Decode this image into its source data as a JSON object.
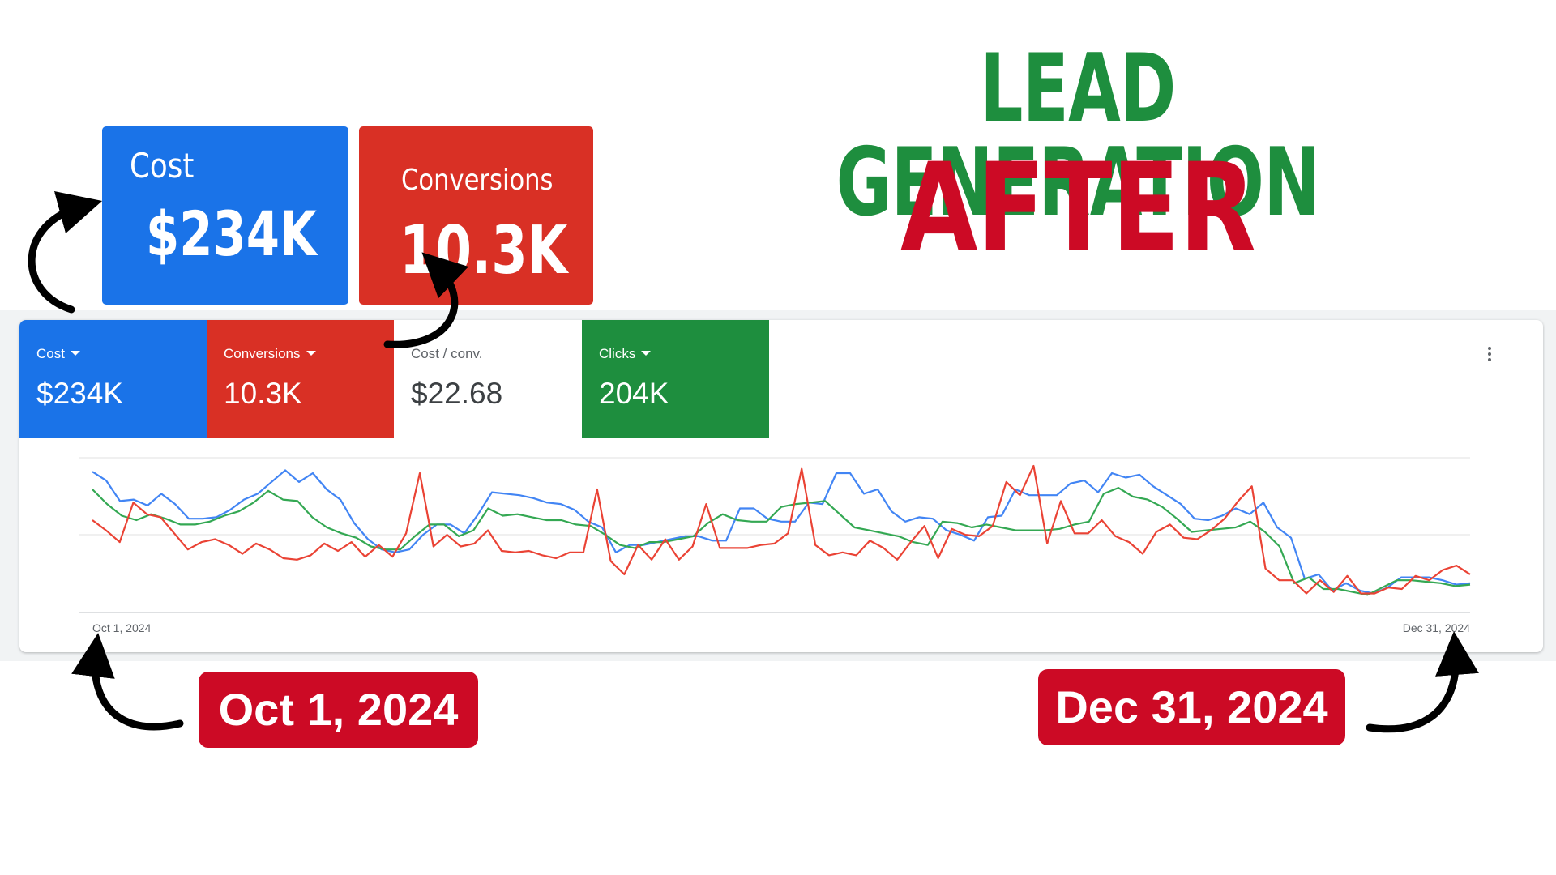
{
  "headline": {
    "line1": "LEAD GENERATION",
    "line2": "AFTER",
    "line1_color": "#1e8e3e",
    "line2_color": "#cc0a25"
  },
  "callouts": {
    "cost": {
      "label": "Cost",
      "value": "$234K"
    },
    "conversions": {
      "label": "Conversions",
      "value": "10.3K"
    }
  },
  "kpis": {
    "cost": {
      "label": "Cost",
      "value": "$234K",
      "color": "#1a73e8"
    },
    "conversions": {
      "label": "Conversions",
      "value": "10.3K",
      "color": "#d93025"
    },
    "cost_per_conv": {
      "label": "Cost / conv.",
      "value": "$22.68"
    },
    "clicks": {
      "label": "Clicks",
      "value": "204K",
      "color": "#1e8e3e"
    }
  },
  "date_pills": {
    "start": "Oct 1, 2024",
    "end": "Dec 31, 2024"
  },
  "chart_data": {
    "type": "line",
    "title": "",
    "xlabel": "",
    "ylabel": "",
    "x_ticks": [
      "Oct 1, 2024",
      "Dec 31, 2024"
    ],
    "x_start": "2024-10-01",
    "x_end": "2024-12-31",
    "grid": true,
    "series": [
      {
        "color": "#4285f4",
        "values": [
          0.96,
          0.9,
          0.76,
          0.77,
          0.73,
          0.81,
          0.74,
          0.64,
          0.64,
          0.65,
          0.7,
          0.77,
          0.81,
          0.89,
          0.97,
          0.89,
          0.95,
          0.84,
          0.77,
          0.61,
          0.5,
          0.43,
          0.41,
          0.43,
          0.53,
          0.6,
          0.6,
          0.54,
          0.67,
          0.82,
          0.81,
          0.8,
          0.78,
          0.75,
          0.74,
          0.7,
          0.62,
          0.58,
          0.41,
          0.46,
          0.46,
          0.48,
          0.5,
          0.52,
          0.52,
          0.49,
          0.49,
          0.71,
          0.71,
          0.64,
          0.62,
          0.62,
          0.75,
          0.74,
          0.95,
          0.95,
          0.81,
          0.84,
          0.69,
          0.62,
          0.65,
          0.64,
          0.56,
          0.53,
          0.49,
          0.65,
          0.66,
          0.84,
          0.8,
          0.8,
          0.8,
          0.88,
          0.9,
          0.82,
          0.95,
          0.92,
          0.94,
          0.86,
          0.8,
          0.74,
          0.64,
          0.63,
          0.66,
          0.71,
          0.67,
          0.75,
          0.58,
          0.51,
          0.23,
          0.26,
          0.15,
          0.2,
          0.15,
          0.13,
          0.17,
          0.24,
          0.24,
          0.24,
          0.22,
          0.19,
          0.2
        ]
      },
      {
        "color": "#34a853",
        "values": [
          0.84,
          0.74,
          0.66,
          0.63,
          0.67,
          0.64,
          0.6,
          0.6,
          0.62,
          0.66,
          0.69,
          0.75,
          0.83,
          0.77,
          0.76,
          0.65,
          0.58,
          0.54,
          0.51,
          0.45,
          0.43,
          0.43,
          0.52,
          0.6,
          0.6,
          0.52,
          0.56,
          0.71,
          0.66,
          0.67,
          0.65,
          0.63,
          0.63,
          0.6,
          0.59,
          0.53,
          0.46,
          0.44,
          0.48,
          0.48,
          0.5,
          0.52,
          0.61,
          0.67,
          0.63,
          0.62,
          0.62,
          0.72,
          0.74,
          0.75,
          0.76,
          0.67,
          0.58,
          0.56,
          0.54,
          0.52,
          0.48,
          0.46,
          0.62,
          0.61,
          0.58,
          0.6,
          0.58,
          0.56,
          0.56,
          0.56,
          0.57,
          0.6,
          0.62,
          0.81,
          0.85,
          0.79,
          0.77,
          0.72,
          0.64,
          0.55,
          0.56,
          0.57,
          0.58,
          0.62,
          0.55,
          0.45,
          0.2,
          0.24,
          0.16,
          0.16,
          0.14,
          0.12,
          0.17,
          0.22,
          0.22,
          0.21,
          0.2,
          0.18,
          0.19
        ]
      },
      {
        "color": "#ea4335",
        "values": [
          0.63,
          0.56,
          0.48,
          0.75,
          0.67,
          0.65,
          0.54,
          0.43,
          0.48,
          0.5,
          0.46,
          0.4,
          0.47,
          0.43,
          0.37,
          0.36,
          0.39,
          0.47,
          0.42,
          0.48,
          0.38,
          0.46,
          0.38,
          0.54,
          0.95,
          0.45,
          0.53,
          0.45,
          0.47,
          0.56,
          0.42,
          0.41,
          0.42,
          0.39,
          0.37,
          0.41,
          0.41,
          0.84,
          0.35,
          0.26,
          0.46,
          0.36,
          0.5,
          0.36,
          0.45,
          0.74,
          0.44,
          0.44,
          0.44,
          0.46,
          0.47,
          0.54,
          0.98,
          0.46,
          0.39,
          0.41,
          0.39,
          0.49,
          0.44,
          0.36,
          0.48,
          0.59,
          0.37,
          0.57,
          0.53,
          0.52,
          0.59,
          0.89,
          0.8,
          1.0,
          0.47,
          0.76,
          0.54,
          0.54,
          0.63,
          0.52,
          0.48,
          0.4,
          0.55,
          0.6,
          0.51,
          0.5,
          0.56,
          0.64,
          0.76,
          0.86,
          0.3,
          0.22,
          0.22,
          0.13,
          0.22,
          0.14,
          0.25,
          0.13,
          0.13,
          0.17,
          0.16,
          0.25,
          0.22,
          0.29,
          0.32,
          0.26
        ]
      }
    ]
  }
}
